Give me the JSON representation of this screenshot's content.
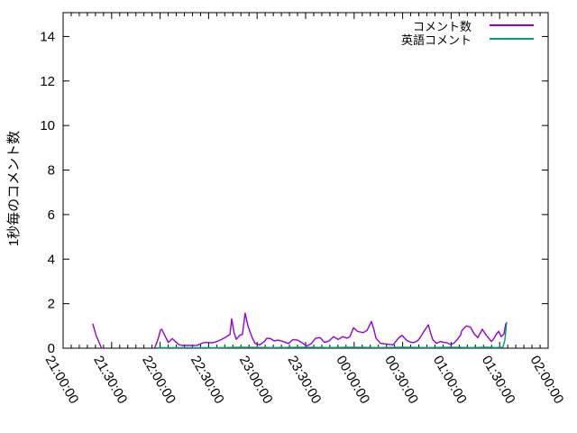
{
  "window": {
    "background": "#ffffff",
    "border_color": "#000000",
    "text_color": "#000000"
  },
  "chart_data": {
    "type": "line",
    "title": "",
    "xlabel": "",
    "ylabel": "1秒毎のコメント数",
    "grid": false,
    "legend_position": "top-right-inside",
    "x_axis": {
      "tick_labels": [
        "21:00:00",
        "21:30:00",
        "22:00:00",
        "22:30:00",
        "23:00:00",
        "23:30:00",
        "00:00:00",
        "00:30:00",
        "01:00:00",
        "01:30:00",
        "02:00:00"
      ],
      "tick_minutes": [
        0,
        30,
        60,
        90,
        120,
        150,
        180,
        210,
        240,
        270,
        300
      ],
      "minor_tick_step_minutes": 5,
      "range_minutes": [
        0,
        300
      ],
      "label_rotation_deg": 60
    },
    "y_axis": {
      "tick_labels": [
        "0",
        "2",
        "4",
        "6",
        "8",
        "10",
        "12",
        "14"
      ],
      "tick_values": [
        0,
        2,
        4,
        6,
        8,
        10,
        12,
        14
      ],
      "range": [
        0,
        15.07
      ]
    },
    "series": [
      {
        "name": "コメント数",
        "color": "#9400d3",
        "segments": [
          [
            [
              18.4,
              1.08
            ],
            [
              20.5,
              0.55
            ],
            [
              23.8,
              0
            ]
          ],
          [
            [
              56.7,
              0.03
            ],
            [
              58.6,
              0.38
            ],
            [
              60.3,
              0.82
            ],
            [
              61,
              0.85
            ],
            [
              63.2,
              0.53
            ],
            [
              65,
              0.26
            ],
            [
              67.5,
              0.43
            ],
            [
              69.5,
              0.3
            ],
            [
              71.6,
              0.16
            ],
            [
              74,
              0.12
            ],
            [
              77,
              0.13
            ],
            [
              80,
              0.12
            ],
            [
              83,
              0.13
            ],
            [
              86.4,
              0.24
            ],
            [
              88.8,
              0.26
            ],
            [
              91.5,
              0.24
            ],
            [
              94,
              0.27
            ],
            [
              96,
              0.33
            ],
            [
              98.2,
              0.4
            ],
            [
              100.4,
              0.49
            ],
            [
              102.1,
              0.57
            ],
            [
              103.2,
              0.61
            ],
            [
              104.3,
              1.32
            ],
            [
              105.7,
              0.7
            ],
            [
              107.1,
              0.4
            ],
            [
              109.3,
              0.58
            ],
            [
              110.9,
              0.62
            ],
            [
              112.6,
              1.57
            ],
            [
              114.3,
              1.0
            ],
            [
              115.4,
              0.77
            ],
            [
              117.1,
              0.45
            ],
            [
              118.8,
              0.21
            ],
            [
              121.6,
              0.15
            ],
            [
              124.5,
              0.3
            ],
            [
              126,
              0.45
            ],
            [
              128.3,
              0.43
            ],
            [
              130.5,
              0.33
            ],
            [
              133,
              0.36
            ],
            [
              135,
              0.33
            ],
            [
              137.2,
              0.27
            ],
            [
              139.4,
              0.21
            ],
            [
              142.2,
              0.39
            ],
            [
              145,
              0.36
            ],
            [
              147.5,
              0.26
            ],
            [
              150.6,
              0.1
            ],
            [
              153.4,
              0.2
            ],
            [
              156.2,
              0.45
            ],
            [
              159,
              0.48
            ],
            [
              161.7,
              0.26
            ],
            [
              164.5,
              0.33
            ],
            [
              167.3,
              0.52
            ],
            [
              170.1,
              0.39
            ],
            [
              172.9,
              0.52
            ],
            [
              175.7,
              0.45
            ],
            [
              177.4,
              0.52
            ],
            [
              179.6,
              0.92
            ],
            [
              182.3,
              0.75
            ],
            [
              185.7,
              0.7
            ],
            [
              188,
              0.8
            ],
            [
              190.7,
              1.2
            ],
            [
              192.4,
              0.8
            ],
            [
              193.5,
              0.45
            ],
            [
              196.3,
              0.22
            ],
            [
              200.7,
              0.18
            ],
            [
              204.1,
              0.15
            ],
            [
              207.4,
              0.45
            ],
            [
              209.6,
              0.58
            ],
            [
              212.5,
              0.35
            ],
            [
              214.7,
              0.27
            ],
            [
              216.9,
              0.25
            ],
            [
              219.2,
              0.33
            ],
            [
              220.9,
              0.48
            ],
            [
              223.1,
              0.75
            ],
            [
              225.9,
              1.05
            ],
            [
              227.6,
              0.6
            ],
            [
              228.7,
              0.38
            ],
            [
              230.9,
              0.22
            ],
            [
              233.2,
              0.3
            ],
            [
              235.4,
              0.26
            ],
            [
              237.6,
              0.24
            ],
            [
              239.8,
              0.16
            ],
            [
              242,
              0.25
            ],
            [
              243.7,
              0.38
            ],
            [
              245.9,
              0.6
            ],
            [
              246.5,
              0.78
            ],
            [
              249.3,
              1.0
            ],
            [
              251.9,
              0.95
            ],
            [
              254.2,
              0.65
            ],
            [
              256.5,
              0.48
            ],
            [
              259.3,
              0.85
            ],
            [
              261.5,
              0.6
            ],
            [
              264.9,
              0.3
            ],
            [
              266.6,
              0.45
            ],
            [
              267.7,
              0.6
            ],
            [
              269.4,
              0.76
            ],
            [
              271,
              0.52
            ],
            [
              272.7,
              0.65
            ],
            [
              273.8,
              1.1
            ]
          ]
        ]
      },
      {
        "name": "英語コメント",
        "color": "#009e73",
        "segments": [
          [
            [
              58,
              0.02
            ],
            [
              75,
              0.03
            ],
            [
              95,
              0.02
            ],
            [
              110,
              0.04
            ],
            [
              130,
              0.03
            ],
            [
              150,
              0.04
            ],
            [
              165,
              0.03
            ],
            [
              180,
              0.04
            ],
            [
              195,
              0.03
            ],
            [
              210,
              0.04
            ],
            [
              225,
              0.03
            ],
            [
              240,
              0.04
            ],
            [
              252,
              0.03
            ],
            [
              262,
              0.04
            ],
            [
              268,
              0.03
            ],
            [
              272,
              0.04
            ],
            [
              273.2,
              0.35
            ],
            [
              274.3,
              1.15
            ]
          ]
        ]
      }
    ]
  },
  "legend": {
    "items": [
      {
        "label": "コメント数"
      },
      {
        "label": "英語コメント"
      }
    ]
  }
}
